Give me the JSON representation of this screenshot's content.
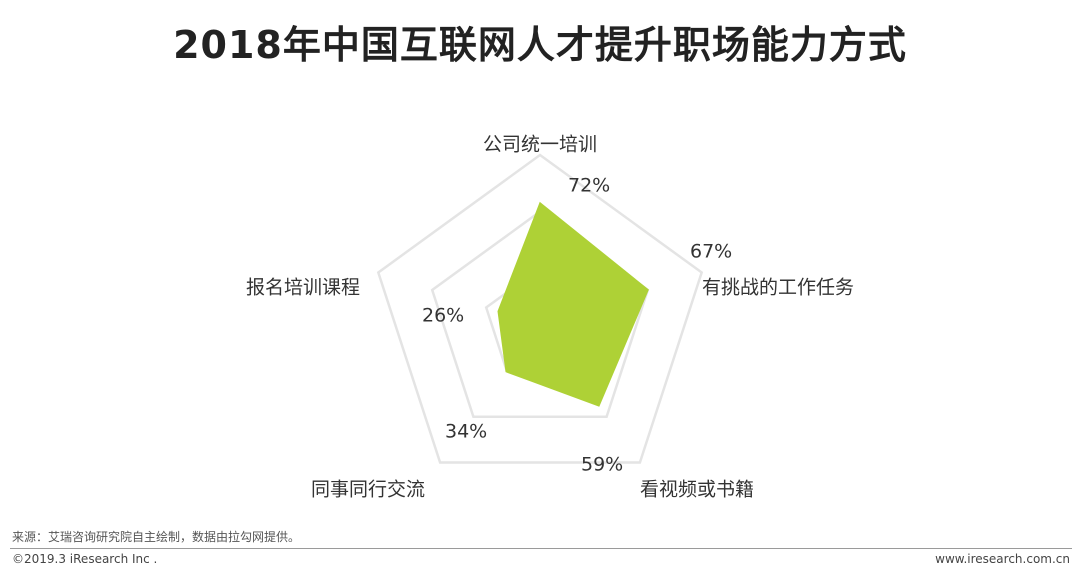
{
  "title": "2018年中国互联网人才提升职场能力方式",
  "chart_data": {
    "type": "radar",
    "categories": [
      "公司统一培训",
      "有挑战的工作任务",
      "看视频或书籍",
      "同事同行交流",
      "报名培训课程"
    ],
    "values": [
      72,
      67,
      59,
      34,
      26
    ],
    "value_labels": [
      "72%",
      "67%",
      "59%",
      "34%",
      "26%"
    ],
    "rmax": 100,
    "grid_levels": [
      33.3,
      66.7,
      100
    ],
    "fill_color": "#aed136",
    "grid_color": "#e4e4e4"
  },
  "footer": {
    "source": "来源：艾瑞咨询研究院自主绘制，数据由拉勾网提供。",
    "copyright": "©2019.3 iResearch Inc .",
    "website": "www.iresearch.com.cn"
  }
}
